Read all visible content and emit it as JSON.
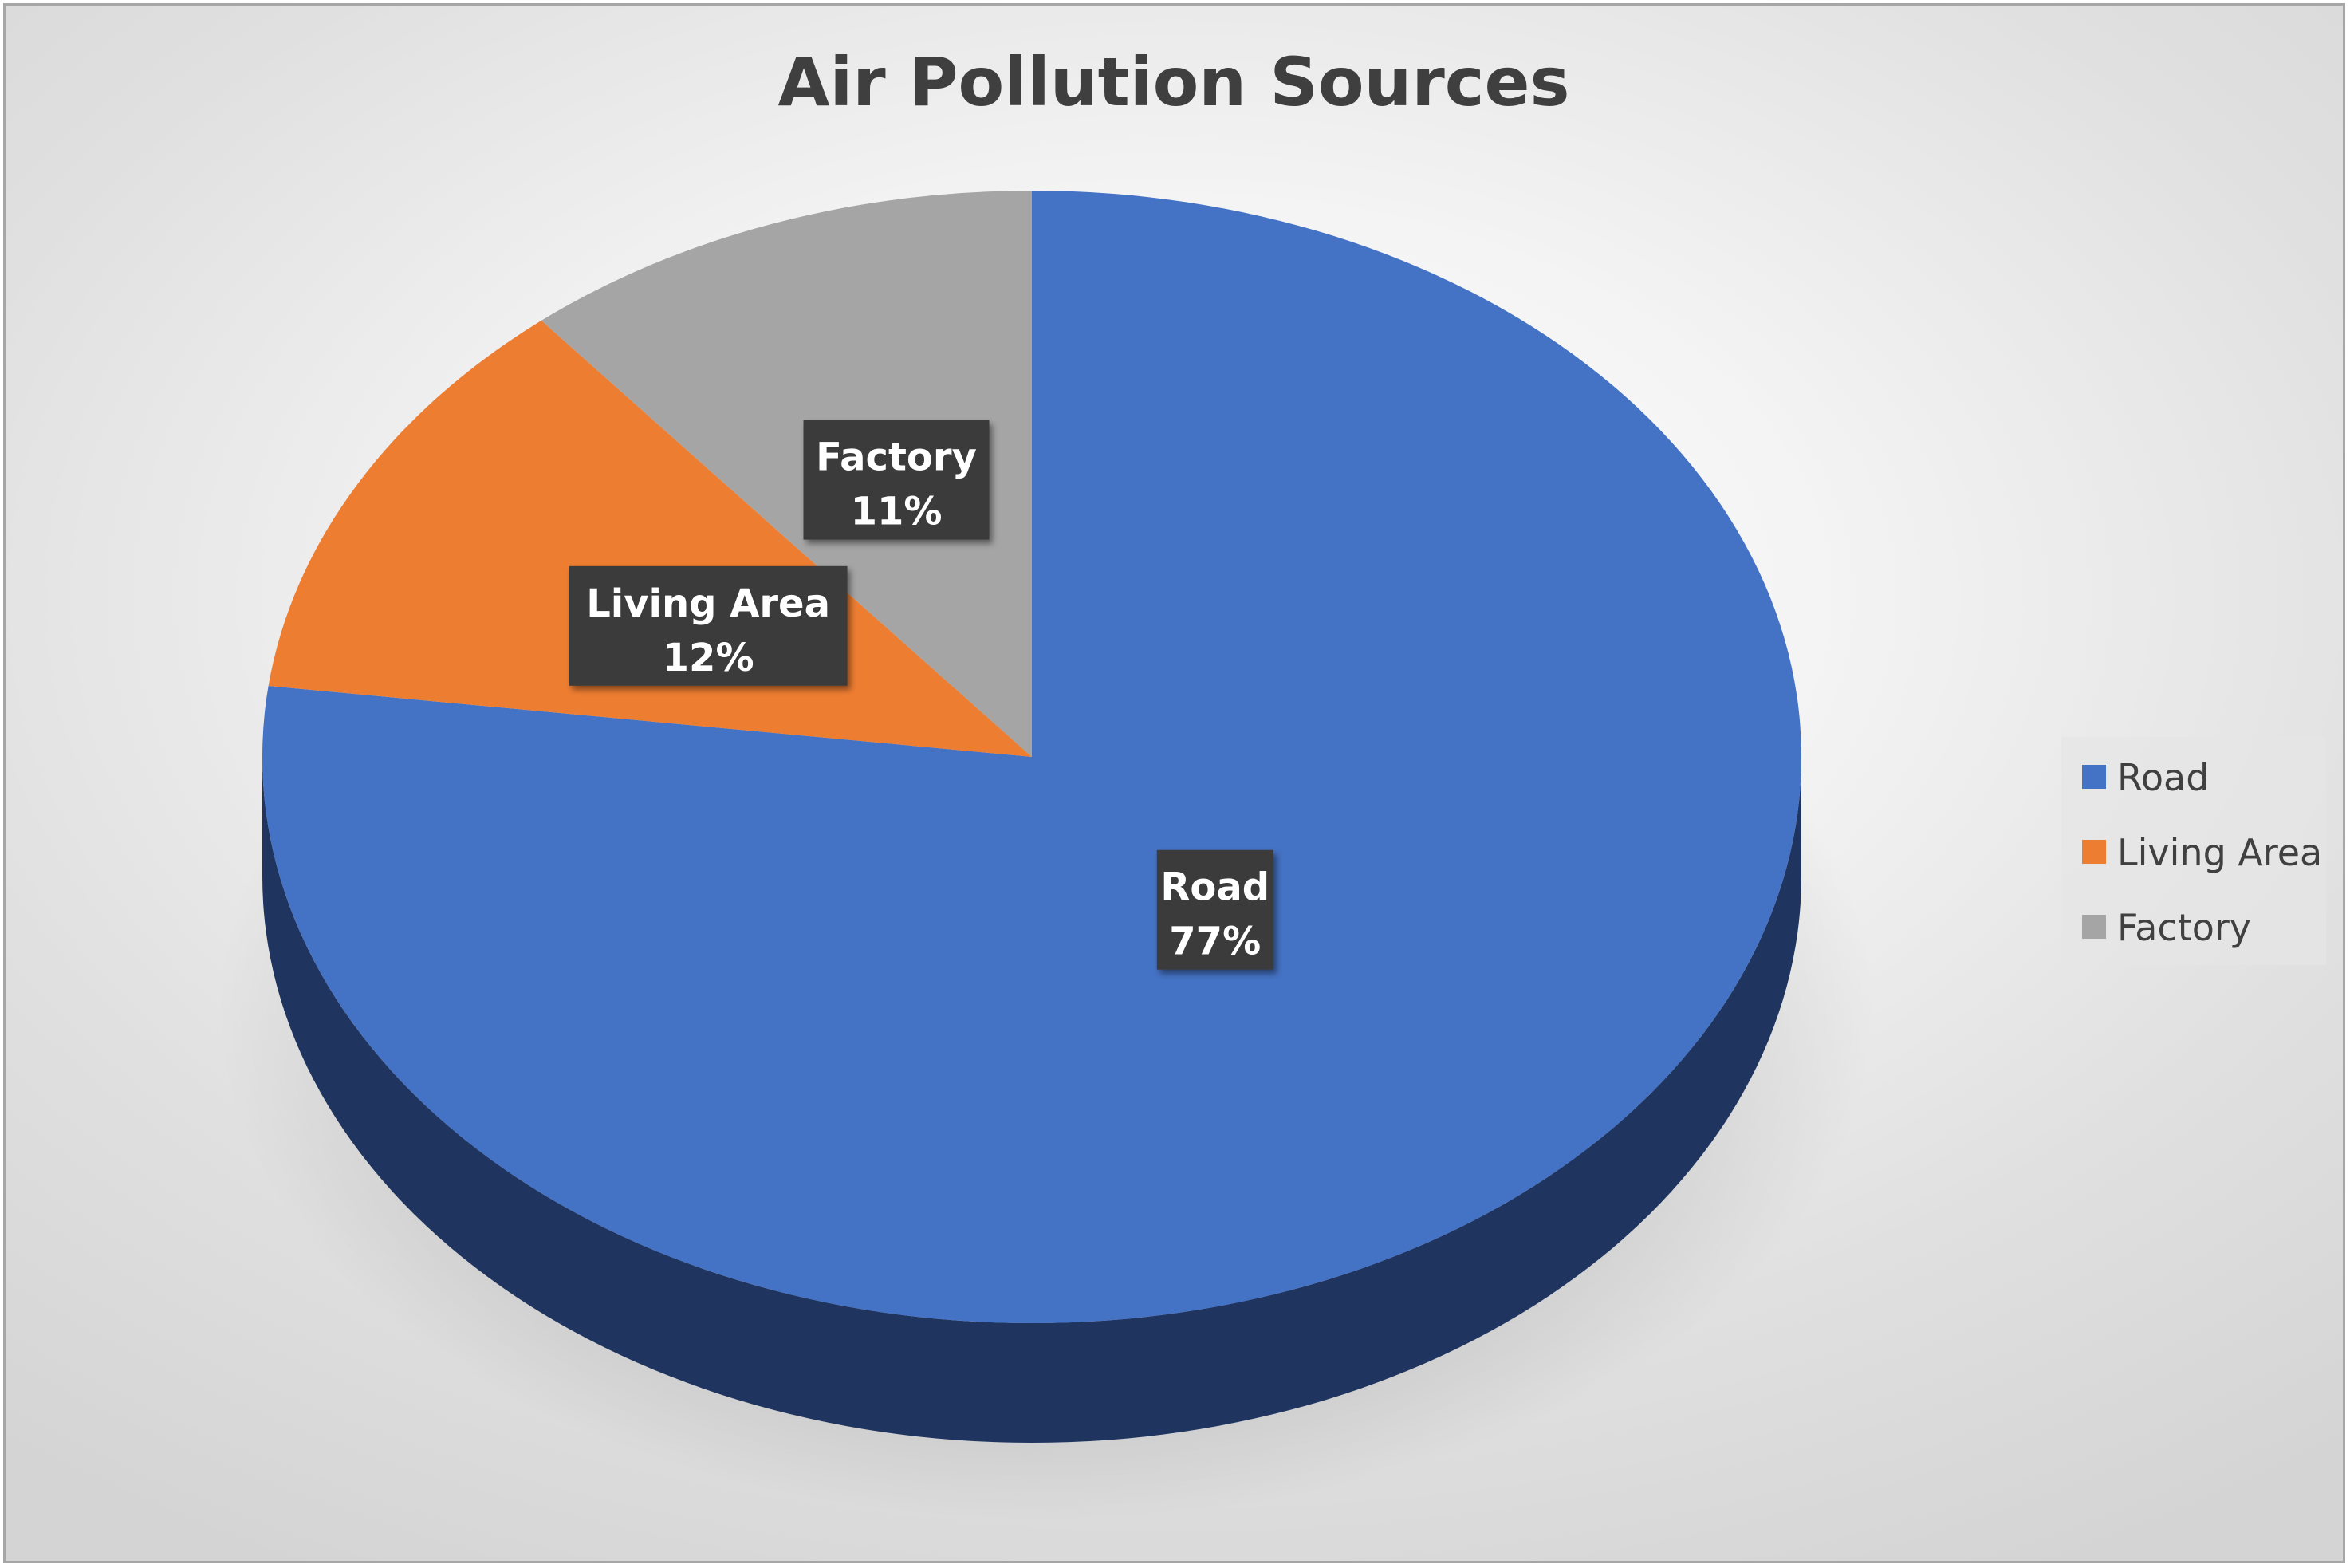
{
  "chart_data": {
    "type": "pie",
    "title": "Air Pollution Sources",
    "style": "3d",
    "legend_position": "right",
    "slices": [
      {
        "label": "Road",
        "value": 77,
        "display": "77%",
        "color": "#4472c4",
        "side_color": "#1f3560"
      },
      {
        "label": "Living Area",
        "value": 12,
        "display": "12%",
        "color": "#ed7d31",
        "side_color": "#8c4718"
      },
      {
        "label": "Factory",
        "value": 11,
        "display": "11%",
        "color": "#a5a5a5",
        "side_color": "#5f5f5f"
      }
    ]
  }
}
